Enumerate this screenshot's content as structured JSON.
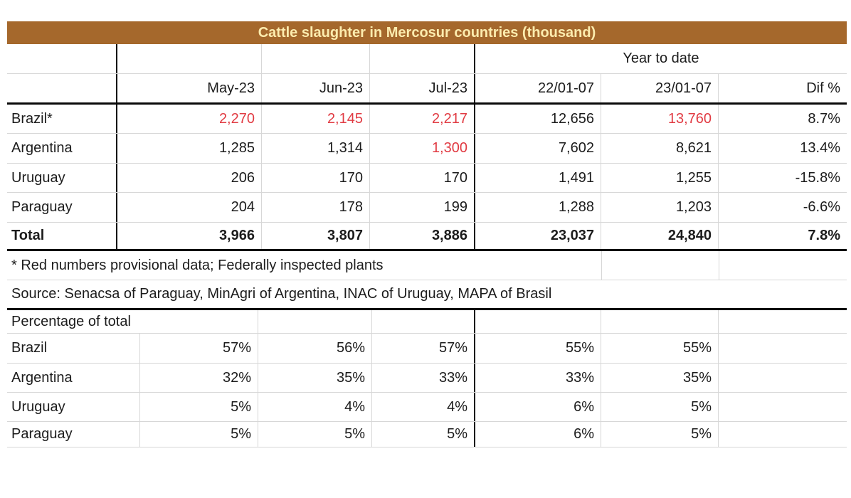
{
  "colors": {
    "title_background": "#a5682c",
    "title_text": "#fcecae",
    "provisional_red": "#e13b43",
    "body_text": "#1c1c1c",
    "gridline": "#d7d7d7",
    "border": "#0a0a0a"
  },
  "chart_data": {
    "type": "table",
    "title": "Cattle slaughter in Mercosur countries (thousand)",
    "group_header": {
      "label": "Year to date",
      "span_columns": [
        "22/01-07",
        "23/01-07",
        "Dif %"
      ]
    },
    "columns": [
      "May-23",
      "Jun-23",
      "Jul-23",
      "22/01-07",
      "23/01-07",
      "Dif %"
    ],
    "rows": [
      {
        "label": "Brazil*",
        "values": [
          "2,270",
          "2,145",
          "2,217",
          "12,656",
          "13,760",
          "8.7%"
        ],
        "red": [
          1,
          1,
          1,
          0,
          1,
          0
        ],
        "bold": false
      },
      {
        "label": "Argentina",
        "values": [
          "1,285",
          "1,314",
          "1,300",
          "7,602",
          "8,621",
          "13.4%"
        ],
        "red": [
          0,
          0,
          1,
          0,
          0,
          0
        ],
        "bold": false
      },
      {
        "label": "Uruguay",
        "values": [
          "206",
          "170",
          "170",
          "1,491",
          "1,255",
          "-15.8%"
        ],
        "red": [
          0,
          0,
          0,
          0,
          0,
          0
        ],
        "bold": false
      },
      {
        "label": "Paraguay",
        "values": [
          "204",
          "178",
          "199",
          "1,288",
          "1,203",
          "-6.6%"
        ],
        "red": [
          0,
          0,
          0,
          0,
          0,
          0
        ],
        "bold": false
      },
      {
        "label": "Total",
        "values": [
          "3,966",
          "3,807",
          "3,886",
          "23,037",
          "24,840",
          "7.8%"
        ],
        "red": [
          0,
          0,
          0,
          0,
          0,
          0
        ],
        "bold": true
      }
    ],
    "footnotes": [
      "* Red numbers provisional data; Federally inspected plants",
      "Source: Senacsa of Paraguay, MinAgri of Argentina, INAC of Uruguay, MAPA of Brasil"
    ],
    "percentage_of_total": {
      "label": "Percentage of total",
      "columns": [
        "May-23",
        "Jun-23",
        "Jul-23",
        "22/01-07",
        "23/01-07"
      ],
      "rows": [
        {
          "label": "Brazil",
          "values": [
            "57%",
            "56%",
            "57%",
            "55%",
            "55%"
          ]
        },
        {
          "label": "Argentina",
          "values": [
            "32%",
            "35%",
            "33%",
            "33%",
            "35%"
          ]
        },
        {
          "label": "Uruguay",
          "values": [
            "5%",
            "4%",
            "4%",
            "6%",
            "5%"
          ]
        },
        {
          "label": "Paraguay",
          "values": [
            "5%",
            "5%",
            "5%",
            "6%",
            "5%"
          ]
        }
      ]
    }
  }
}
